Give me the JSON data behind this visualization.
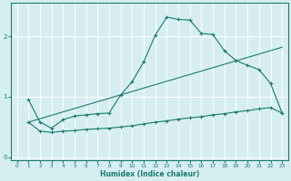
{
  "xlabel": "Humidex (Indice chaleur)",
  "background_color": "#d6eef2",
  "line_color": "#1a7a6e",
  "grid_color": "#ffffff",
  "xlim": [
    -0.5,
    23.5
  ],
  "ylim": [
    -0.05,
    2.55
  ],
  "yticks": [
    0,
    1,
    2
  ],
  "xticks": [
    0,
    1,
    2,
    3,
    4,
    5,
    6,
    7,
    8,
    9,
    10,
    11,
    12,
    13,
    14,
    15,
    16,
    17,
    18,
    19,
    20,
    21,
    22,
    23
  ],
  "line1_x": [
    1,
    2,
    3,
    4,
    5,
    6,
    7,
    8,
    9,
    10,
    11,
    12,
    13,
    14,
    15,
    16,
    17,
    18,
    19,
    20,
    21,
    22,
    23
  ],
  "line1_y": [
    0.95,
    0.58,
    0.48,
    0.62,
    0.68,
    0.7,
    0.72,
    0.73,
    1.03,
    1.25,
    1.58,
    2.02,
    2.32,
    2.28,
    2.27,
    2.05,
    2.03,
    1.76,
    1.6,
    1.52,
    1.45,
    1.22,
    0.73
  ],
  "line2_x": [
    1,
    23
  ],
  "line2_y": [
    0.58,
    1.82
  ],
  "line3_x": [
    1,
    2,
    3,
    4,
    5,
    6,
    7,
    8,
    9,
    10,
    11,
    12,
    13,
    14,
    15,
    16,
    17,
    18,
    19,
    20,
    21,
    22,
    23
  ],
  "line3_y": [
    0.58,
    0.43,
    0.41,
    0.43,
    0.44,
    0.46,
    0.47,
    0.48,
    0.5,
    0.52,
    0.55,
    0.58,
    0.6,
    0.63,
    0.65,
    0.67,
    0.7,
    0.72,
    0.75,
    0.77,
    0.8,
    0.82,
    0.73
  ]
}
